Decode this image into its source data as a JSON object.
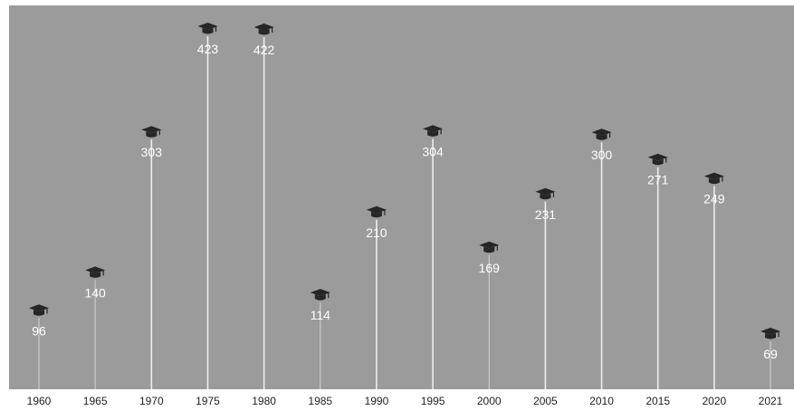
{
  "chart_data": {
    "type": "bar",
    "categories": [
      "1960",
      "1965",
      "1970",
      "1975",
      "1980",
      "1985",
      "1990",
      "1995",
      "2000",
      "2005",
      "2010",
      "2015",
      "2020",
      "2021"
    ],
    "values": [
      96,
      140,
      303,
      423,
      422,
      114,
      210,
      304,
      169,
      231,
      300,
      271,
      249,
      69
    ],
    "data_labels": [
      "96",
      "140",
      "303",
      "423",
      "422",
      "114",
      "210",
      "304",
      "169",
      "231",
      "300",
      "271",
      "249",
      "69"
    ],
    "title": "",
    "xlabel": "",
    "ylabel": "",
    "ylim": [
      0,
      450
    ],
    "grid": false,
    "legend": "none",
    "marker_icon": "graduation-cap-icon",
    "colors": {
      "background": "#9b9b9b",
      "stem": "#f2f2f2",
      "marker": "#262626",
      "value_label": "#ffffff",
      "tick_label": "#222222"
    }
  }
}
